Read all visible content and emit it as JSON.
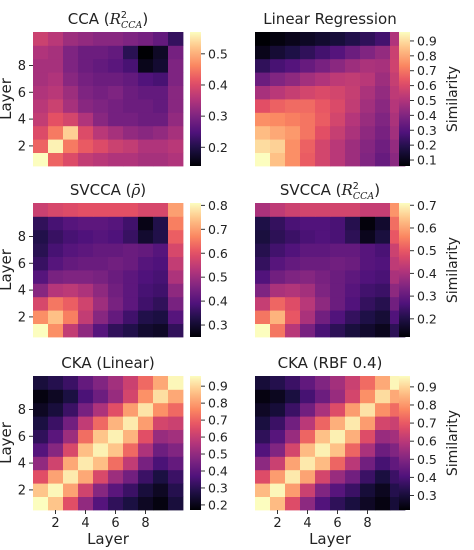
{
  "chart_data": [
    {
      "type": "heatmap",
      "title": "CCA (R²_CCA)",
      "title_main": "CCA (",
      "title_sym": "R",
      "title_sup": "2",
      "title_sub": "CCA",
      "title_end": ")",
      "xlabel": "",
      "ylabel": "Layer",
      "x_ticks": [],
      "y_ticks": [
        "2",
        "4",
        "6",
        "8"
      ],
      "colorbar_ticks": [
        0.2,
        0.3,
        0.4,
        0.5
      ],
      "colorbar_range": [
        0.14,
        0.57
      ],
      "colorbar_label": "",
      "values": [
        [
          0.57,
          0.43,
          0.4,
          0.37,
          0.36,
          0.35,
          0.35,
          0.34,
          0.34,
          0.35
        ],
        [
          0.43,
          0.56,
          0.45,
          0.42,
          0.4,
          0.38,
          0.37,
          0.35,
          0.35,
          0.36
        ],
        [
          0.4,
          0.45,
          0.53,
          0.4,
          0.36,
          0.34,
          0.32,
          0.31,
          0.32,
          0.34
        ],
        [
          0.37,
          0.41,
          0.39,
          0.35,
          0.31,
          0.29,
          0.29,
          0.28,
          0.28,
          0.32
        ],
        [
          0.36,
          0.38,
          0.34,
          0.31,
          0.3,
          0.29,
          0.28,
          0.28,
          0.27,
          0.31
        ],
        [
          0.35,
          0.36,
          0.33,
          0.3,
          0.29,
          0.3,
          0.28,
          0.27,
          0.27,
          0.31
        ],
        [
          0.34,
          0.35,
          0.31,
          0.29,
          0.28,
          0.28,
          0.27,
          0.25,
          0.24,
          0.3
        ],
        [
          0.34,
          0.34,
          0.3,
          0.28,
          0.27,
          0.26,
          0.24,
          0.16,
          0.18,
          0.3
        ],
        [
          0.35,
          0.34,
          0.3,
          0.28,
          0.28,
          0.27,
          0.21,
          0.14,
          0.17,
          0.29
        ],
        [
          0.38,
          0.36,
          0.33,
          0.32,
          0.31,
          0.31,
          0.3,
          0.29,
          0.27,
          0.22
        ]
      ]
    },
    {
      "type": "heatmap",
      "title": "Linear Regression",
      "xlabel": "",
      "ylabel": "",
      "x_ticks": [],
      "y_ticks": [],
      "colorbar_ticks": [
        0.1,
        0.2,
        0.3,
        0.4,
        0.5,
        0.6,
        0.7,
        0.8,
        0.9
      ],
      "colorbar_range": [
        0.06,
        0.96
      ],
      "colorbar_label": "Similarity",
      "values": [
        [
          0.96,
          0.85,
          0.75,
          0.65,
          0.58,
          0.52,
          0.46,
          0.4,
          0.34,
          0.42
        ],
        [
          0.9,
          0.88,
          0.75,
          0.66,
          0.58,
          0.52,
          0.46,
          0.41,
          0.36,
          0.44
        ],
        [
          0.84,
          0.8,
          0.77,
          0.7,
          0.62,
          0.55,
          0.49,
          0.43,
          0.38,
          0.47
        ],
        [
          0.75,
          0.74,
          0.72,
          0.7,
          0.65,
          0.58,
          0.51,
          0.45,
          0.4,
          0.49
        ],
        [
          0.62,
          0.66,
          0.68,
          0.68,
          0.64,
          0.6,
          0.54,
          0.47,
          0.42,
          0.51
        ],
        [
          0.48,
          0.52,
          0.55,
          0.58,
          0.6,
          0.58,
          0.55,
          0.49,
          0.44,
          0.53
        ],
        [
          0.35,
          0.4,
          0.43,
          0.47,
          0.5,
          0.53,
          0.54,
          0.52,
          0.46,
          0.55
        ],
        [
          0.22,
          0.27,
          0.3,
          0.34,
          0.38,
          0.42,
          0.46,
          0.49,
          0.48,
          0.57
        ],
        [
          0.1,
          0.15,
          0.18,
          0.22,
          0.26,
          0.3,
          0.35,
          0.4,
          0.44,
          0.56
        ],
        [
          0.06,
          0.08,
          0.1,
          0.12,
          0.14,
          0.16,
          0.19,
          0.22,
          0.26,
          0.5
        ]
      ]
    },
    {
      "type": "heatmap",
      "title": "SVCCA (ρ̄)",
      "title_main": "SVCCA (",
      "title_sym": "ρ̄",
      "title_end": ")",
      "xlabel": "",
      "ylabel": "Layer",
      "x_ticks": [],
      "y_ticks": [
        "2",
        "4",
        "6",
        "8"
      ],
      "colorbar_ticks": [
        0.3,
        0.4,
        0.5,
        0.6,
        0.7,
        0.8
      ],
      "colorbar_range": [
        0.25,
        0.81
      ],
      "colorbar_label": "",
      "values": [
        [
          0.81,
          0.68,
          0.55,
          0.48,
          0.4,
          0.35,
          0.33,
          0.3,
          0.29,
          0.35
        ],
        [
          0.68,
          0.74,
          0.66,
          0.55,
          0.47,
          0.42,
          0.37,
          0.33,
          0.32,
          0.4
        ],
        [
          0.58,
          0.65,
          0.62,
          0.57,
          0.5,
          0.45,
          0.41,
          0.37,
          0.35,
          0.45
        ],
        [
          0.47,
          0.53,
          0.54,
          0.52,
          0.48,
          0.44,
          0.41,
          0.38,
          0.37,
          0.48
        ],
        [
          0.4,
          0.45,
          0.46,
          0.46,
          0.45,
          0.43,
          0.41,
          0.39,
          0.38,
          0.52
        ],
        [
          0.36,
          0.4,
          0.42,
          0.43,
          0.43,
          0.44,
          0.43,
          0.4,
          0.39,
          0.55
        ],
        [
          0.34,
          0.38,
          0.4,
          0.41,
          0.42,
          0.42,
          0.43,
          0.42,
          0.4,
          0.58
        ],
        [
          0.33,
          0.36,
          0.38,
          0.39,
          0.4,
          0.39,
          0.36,
          0.3,
          0.33,
          0.62
        ],
        [
          0.35,
          0.38,
          0.4,
          0.41,
          0.41,
          0.4,
          0.37,
          0.27,
          0.33,
          0.66
        ],
        [
          0.56,
          0.58,
          0.59,
          0.6,
          0.6,
          0.6,
          0.6,
          0.58,
          0.58,
          0.7
        ]
      ]
    },
    {
      "type": "heatmap",
      "title": "SVCCA (R²_CCA)",
      "title_main": "SVCCA (",
      "title_sym": "R",
      "title_sup": "2",
      "title_sub": "CCA",
      "title_end": ")",
      "xlabel": "",
      "ylabel": "",
      "x_ticks": [],
      "y_ticks": [],
      "colorbar_ticks": [
        0.2,
        0.3,
        0.4,
        0.5,
        0.6,
        0.7
      ],
      "colorbar_range": [
        0.12,
        0.71
      ],
      "colorbar_label": "Similarity",
      "values": [
        [
          0.71,
          0.54,
          0.42,
          0.33,
          0.26,
          0.22,
          0.19,
          0.17,
          0.15,
          0.22
        ],
        [
          0.54,
          0.62,
          0.5,
          0.4,
          0.32,
          0.27,
          0.23,
          0.2,
          0.18,
          0.27
        ],
        [
          0.44,
          0.52,
          0.48,
          0.42,
          0.36,
          0.31,
          0.27,
          0.23,
          0.21,
          0.32
        ],
        [
          0.34,
          0.4,
          0.41,
          0.39,
          0.34,
          0.31,
          0.28,
          0.25,
          0.24,
          0.36
        ],
        [
          0.27,
          0.32,
          0.34,
          0.35,
          0.33,
          0.31,
          0.29,
          0.27,
          0.26,
          0.4
        ],
        [
          0.23,
          0.28,
          0.3,
          0.31,
          0.31,
          0.32,
          0.31,
          0.28,
          0.27,
          0.43
        ],
        [
          0.21,
          0.25,
          0.27,
          0.29,
          0.29,
          0.3,
          0.3,
          0.28,
          0.26,
          0.45
        ],
        [
          0.19,
          0.22,
          0.24,
          0.26,
          0.27,
          0.26,
          0.22,
          0.15,
          0.19,
          0.5
        ],
        [
          0.2,
          0.23,
          0.26,
          0.27,
          0.27,
          0.26,
          0.21,
          0.13,
          0.17,
          0.53
        ],
        [
          0.4,
          0.43,
          0.45,
          0.46,
          0.46,
          0.46,
          0.46,
          0.44,
          0.44,
          0.58
        ]
      ]
    },
    {
      "type": "heatmap",
      "title": "CKA (Linear)",
      "xlabel": "Layer",
      "ylabel": "Layer",
      "x_ticks": [
        "2",
        "4",
        "6",
        "8"
      ],
      "y_ticks": [
        "2",
        "4",
        "6",
        "8"
      ],
      "colorbar_ticks": [
        0.2,
        0.3,
        0.4,
        0.5,
        0.6,
        0.7,
        0.8,
        0.9
      ],
      "colorbar_range": [
        0.17,
        0.96
      ],
      "colorbar_label": "",
      "values": [
        [
          0.96,
          0.87,
          0.66,
          0.5,
          0.38,
          0.31,
          0.27,
          0.22,
          0.19,
          0.26
        ],
        [
          0.87,
          0.95,
          0.81,
          0.62,
          0.48,
          0.39,
          0.33,
          0.26,
          0.22,
          0.29
        ],
        [
          0.66,
          0.81,
          0.93,
          0.82,
          0.64,
          0.52,
          0.44,
          0.33,
          0.27,
          0.33
        ],
        [
          0.5,
          0.62,
          0.82,
          0.93,
          0.86,
          0.72,
          0.59,
          0.45,
          0.36,
          0.41
        ],
        [
          0.38,
          0.48,
          0.64,
          0.86,
          0.94,
          0.87,
          0.71,
          0.55,
          0.43,
          0.47
        ],
        [
          0.31,
          0.39,
          0.52,
          0.72,
          0.87,
          0.94,
          0.84,
          0.66,
          0.51,
          0.53
        ],
        [
          0.27,
          0.33,
          0.44,
          0.59,
          0.71,
          0.84,
          0.93,
          0.8,
          0.63,
          0.61
        ],
        [
          0.22,
          0.26,
          0.33,
          0.45,
          0.55,
          0.66,
          0.8,
          0.92,
          0.78,
          0.71
        ],
        [
          0.19,
          0.22,
          0.27,
          0.36,
          0.43,
          0.51,
          0.63,
          0.78,
          0.91,
          0.82
        ],
        [
          0.26,
          0.29,
          0.33,
          0.41,
          0.47,
          0.53,
          0.61,
          0.71,
          0.82,
          0.95
        ]
      ]
    },
    {
      "type": "heatmap",
      "title": "CKA (RBF 0.4)",
      "xlabel": "Layer",
      "ylabel": "",
      "x_ticks": [
        "2",
        "4",
        "6",
        "8"
      ],
      "y_ticks": [],
      "colorbar_ticks": [
        0.3,
        0.4,
        0.5,
        0.6,
        0.7,
        0.8,
        0.9
      ],
      "colorbar_range": [
        0.22,
        0.96
      ],
      "colorbar_label": "Similarity",
      "values": [
        [
          0.96,
          0.86,
          0.67,
          0.52,
          0.41,
          0.35,
          0.31,
          0.27,
          0.24,
          0.3
        ],
        [
          0.86,
          0.95,
          0.81,
          0.63,
          0.5,
          0.42,
          0.37,
          0.3,
          0.26,
          0.33
        ],
        [
          0.67,
          0.81,
          0.93,
          0.82,
          0.65,
          0.54,
          0.47,
          0.37,
          0.31,
          0.37
        ],
        [
          0.52,
          0.63,
          0.82,
          0.93,
          0.86,
          0.72,
          0.6,
          0.47,
          0.39,
          0.44
        ],
        [
          0.41,
          0.5,
          0.65,
          0.86,
          0.94,
          0.87,
          0.72,
          0.57,
          0.46,
          0.5
        ],
        [
          0.35,
          0.42,
          0.54,
          0.72,
          0.87,
          0.94,
          0.84,
          0.67,
          0.54,
          0.56
        ],
        [
          0.31,
          0.37,
          0.47,
          0.6,
          0.72,
          0.84,
          0.93,
          0.81,
          0.65,
          0.63
        ],
        [
          0.27,
          0.3,
          0.37,
          0.47,
          0.57,
          0.67,
          0.81,
          0.92,
          0.79,
          0.73
        ],
        [
          0.24,
          0.26,
          0.31,
          0.39,
          0.46,
          0.54,
          0.65,
          0.79,
          0.91,
          0.83
        ],
        [
          0.3,
          0.33,
          0.37,
          0.44,
          0.5,
          0.56,
          0.63,
          0.73,
          0.83,
          0.95
        ]
      ]
    }
  ]
}
